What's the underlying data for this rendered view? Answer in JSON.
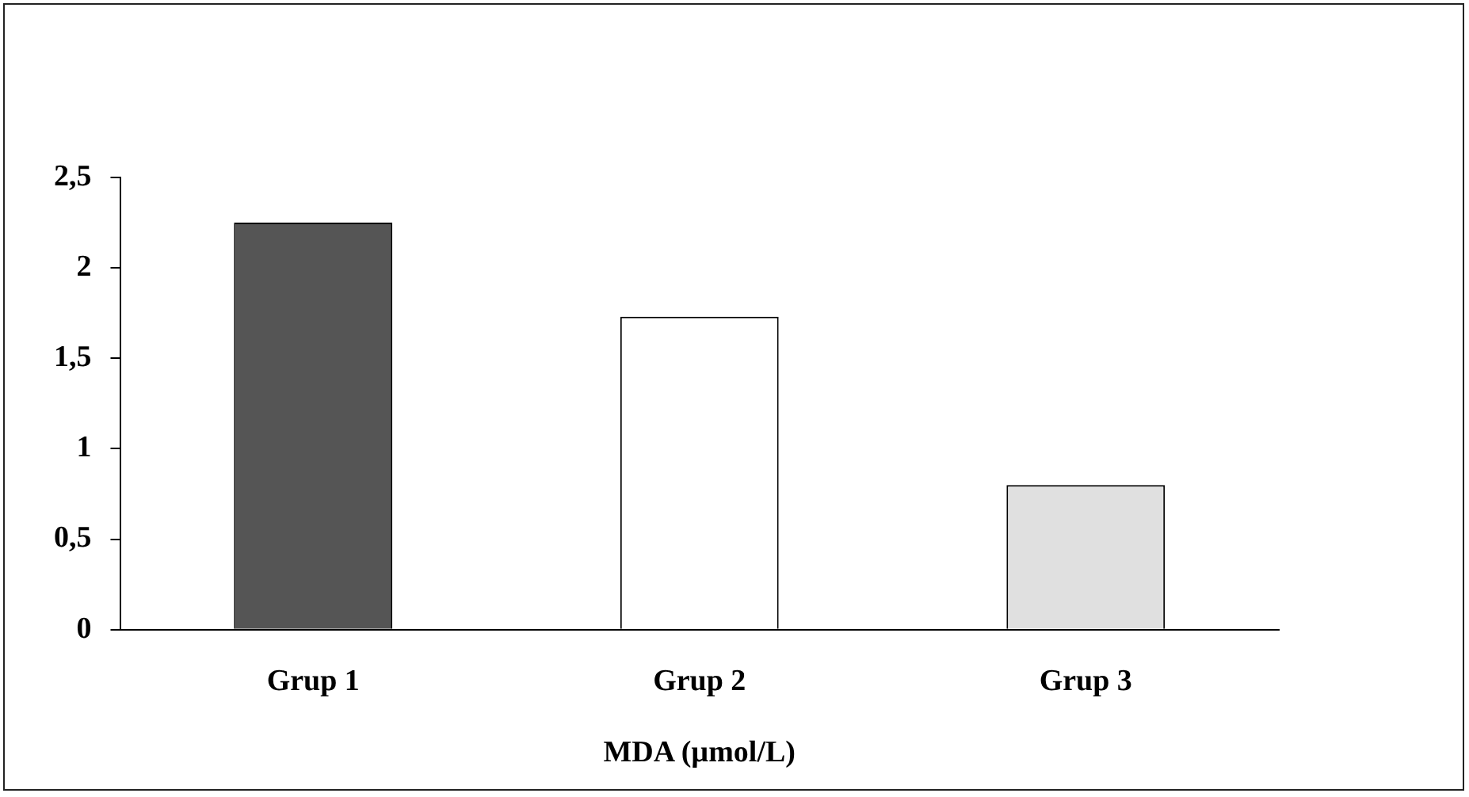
{
  "chart_data": {
    "type": "bar",
    "xlabel": "MDA (µmol/L)",
    "categories": [
      "Grup 1",
      "Grup 2",
      "Grup 3"
    ],
    "values": [
      2.25,
      1.73,
      0.8
    ],
    "colors": [
      "#555555",
      "#ffffff",
      "#e0e0e0"
    ],
    "ylim": [
      0,
      2.5
    ],
    "yticks": [
      0,
      {
        "value": 0.5,
        "label": "0,5"
      },
      1,
      {
        "value": 1.5,
        "label": "1,5"
      },
      2,
      {
        "value": 2.5,
        "label": "2,5"
      }
    ],
    "grid": false,
    "legend": false
  }
}
